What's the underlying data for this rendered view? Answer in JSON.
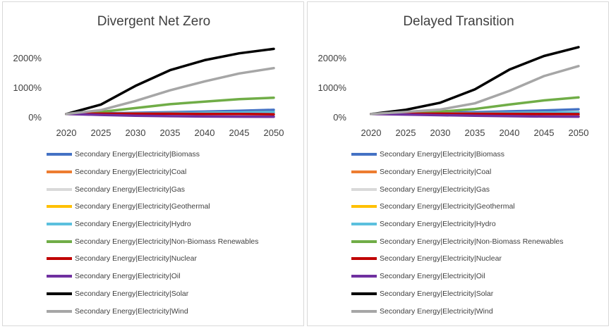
{
  "chart_data": [
    {
      "type": "line",
      "title": "Divergent Net Zero",
      "x": [
        2020,
        2025,
        2030,
        2035,
        2040,
        2045,
        2050
      ],
      "ylim": [
        0,
        2500
      ],
      "yticks": [
        0,
        1000,
        2000
      ],
      "ytick_labels": [
        "0%",
        "1000%",
        "2000%"
      ],
      "xtick_labels": [
        "2020",
        "2025",
        "2030",
        "2035",
        "2040",
        "2045",
        "2050"
      ],
      "grid": false,
      "legend_position": "bottom",
      "series": [
        {
          "name": "Secondary Energy|Electricity|Biomass",
          "color": "#4472c4",
          "values": [
            100,
            120,
            140,
            160,
            180,
            210,
            240
          ]
        },
        {
          "name": "Secondary Energy|Electricity|Coal",
          "color": "#ed7d31",
          "values": [
            100,
            90,
            60,
            40,
            30,
            20,
            15
          ]
        },
        {
          "name": "Secondary Energy|Electricity|Gas",
          "color": "#d9d9d9",
          "values": [
            100,
            110,
            110,
            100,
            90,
            80,
            70
          ]
        },
        {
          "name": "Secondary Energy|Electricity|Geothermal",
          "color": "#ffc000",
          "values": [
            100,
            110,
            120,
            130,
            140,
            150,
            160
          ]
        },
        {
          "name": "Secondary Energy|Electricity|Hydro",
          "color": "#5bc0de",
          "values": [
            100,
            110,
            120,
            130,
            140,
            150,
            160
          ]
        },
        {
          "name": "Secondary Energy|Electricity|Non-Biomass Renewables",
          "color": "#70ad47",
          "values": [
            100,
            170,
            300,
            430,
            520,
            600,
            650
          ]
        },
        {
          "name": "Secondary Energy|Electricity|Nuclear",
          "color": "#c00000",
          "values": [
            100,
            110,
            110,
            110,
            100,
            100,
            90
          ]
        },
        {
          "name": "Secondary Energy|Electricity|Oil",
          "color": "#7030a0",
          "values": [
            100,
            70,
            40,
            25,
            15,
            10,
            5
          ]
        },
        {
          "name": "Secondary Energy|Electricity|Solar",
          "color": "#000000",
          "values": [
            100,
            420,
            1050,
            1580,
            1920,
            2150,
            2300
          ]
        },
        {
          "name": "Secondary Energy|Electricity|Wind",
          "color": "#a6a6a6",
          "values": [
            100,
            230,
            540,
            900,
            1200,
            1470,
            1650
          ]
        }
      ]
    },
    {
      "type": "line",
      "title": "Delayed Transition",
      "x": [
        2020,
        2025,
        2030,
        2035,
        2040,
        2045,
        2050
      ],
      "ylim": [
        0,
        2500
      ],
      "yticks": [
        0,
        1000,
        2000
      ],
      "ytick_labels": [
        "0%",
        "1000%",
        "2000%"
      ],
      "xtick_labels": [
        "2020",
        "2025",
        "2030",
        "2035",
        "2040",
        "2045",
        "2050"
      ],
      "grid": false,
      "legend_position": "bottom",
      "series": [
        {
          "name": "Secondary Energy|Electricity|Biomass",
          "color": "#4472c4",
          "values": [
            100,
            110,
            140,
            160,
            190,
            220,
            260
          ]
        },
        {
          "name": "Secondary Energy|Electricity|Coal",
          "color": "#ed7d31",
          "values": [
            100,
            95,
            80,
            60,
            45,
            35,
            25
          ]
        },
        {
          "name": "Secondary Energy|Electricity|Gas",
          "color": "#d9d9d9",
          "values": [
            100,
            105,
            110,
            110,
            100,
            95,
            90
          ]
        },
        {
          "name": "Secondary Energy|Electricity|Geothermal",
          "color": "#ffc000",
          "values": [
            100,
            105,
            115,
            125,
            135,
            145,
            155
          ]
        },
        {
          "name": "Secondary Energy|Electricity|Hydro",
          "color": "#5bc0de",
          "values": [
            100,
            105,
            115,
            125,
            135,
            145,
            155
          ]
        },
        {
          "name": "Secondary Energy|Electricity|Non-Biomass Renewables",
          "color": "#70ad47",
          "values": [
            100,
            130,
            180,
            270,
            420,
            560,
            660
          ]
        },
        {
          "name": "Secondary Energy|Electricity|Nuclear",
          "color": "#c00000",
          "values": [
            100,
            105,
            110,
            110,
            105,
            100,
            95
          ]
        },
        {
          "name": "Secondary Energy|Electricity|Oil",
          "color": "#7030a0",
          "values": [
            100,
            80,
            60,
            40,
            25,
            15,
            10
          ]
        },
        {
          "name": "Secondary Energy|Electricity|Solar",
          "color": "#000000",
          "values": [
            100,
            240,
            480,
            930,
            1600,
            2060,
            2360
          ]
        },
        {
          "name": "Secondary Energy|Electricity|Wind",
          "color": "#a6a6a6",
          "values": [
            100,
            170,
            250,
            460,
            880,
            1380,
            1720
          ]
        }
      ]
    }
  ]
}
